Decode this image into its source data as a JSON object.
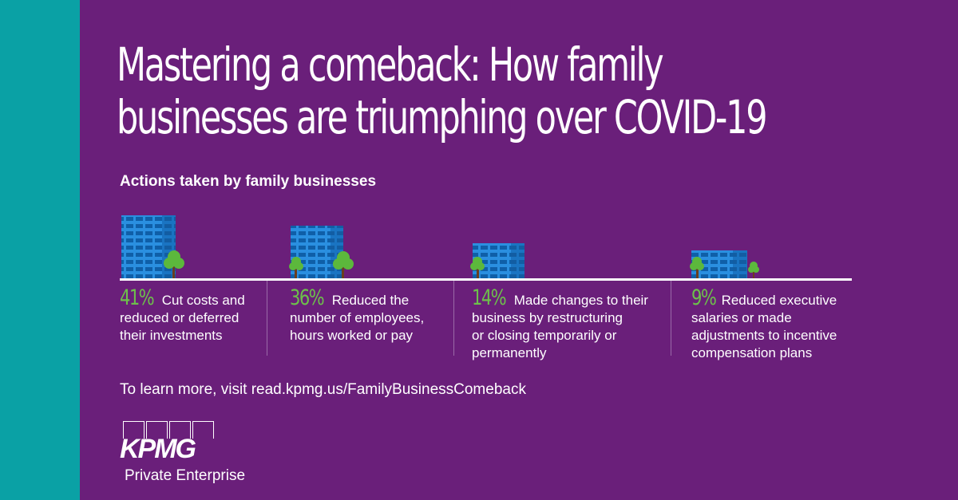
{
  "headline": {
    "line1": "Mastering a comeback: How family",
    "line2": "businesses are triumphing over COVID-19"
  },
  "subheading": "Actions taken by family businesses",
  "stats": [
    {
      "percent": "41%",
      "lines": [
        "Cut costs and",
        "reduced or deferred",
        "their investments"
      ]
    },
    {
      "percent": "36%",
      "lines": [
        "Reduced the",
        "number of employees,",
        "hours worked or pay"
      ]
    },
    {
      "percent": "14%",
      "lines": [
        "Made changes to their",
        "business by restructuring",
        "or closing temporarily or",
        "permanently"
      ]
    },
    {
      "percent": "9%",
      "lines": [
        "Reduced executive",
        "salaries or made",
        "adjustments to incentive",
        "compensation plans"
      ]
    }
  ],
  "cta": "To learn more, visit read.kpmg.us/FamilyBusinessComeback",
  "logo": {
    "word": "KPMG",
    "sub": "Private Enterprise"
  },
  "colors": {
    "background": "#6a1f7a",
    "teal": "#0aa1a5",
    "accent_green": "#6dc04b",
    "building_blue": "#1e88d6",
    "tree_green": "#5cb83c"
  },
  "icons": [
    "building-icon",
    "tree-icon"
  ]
}
